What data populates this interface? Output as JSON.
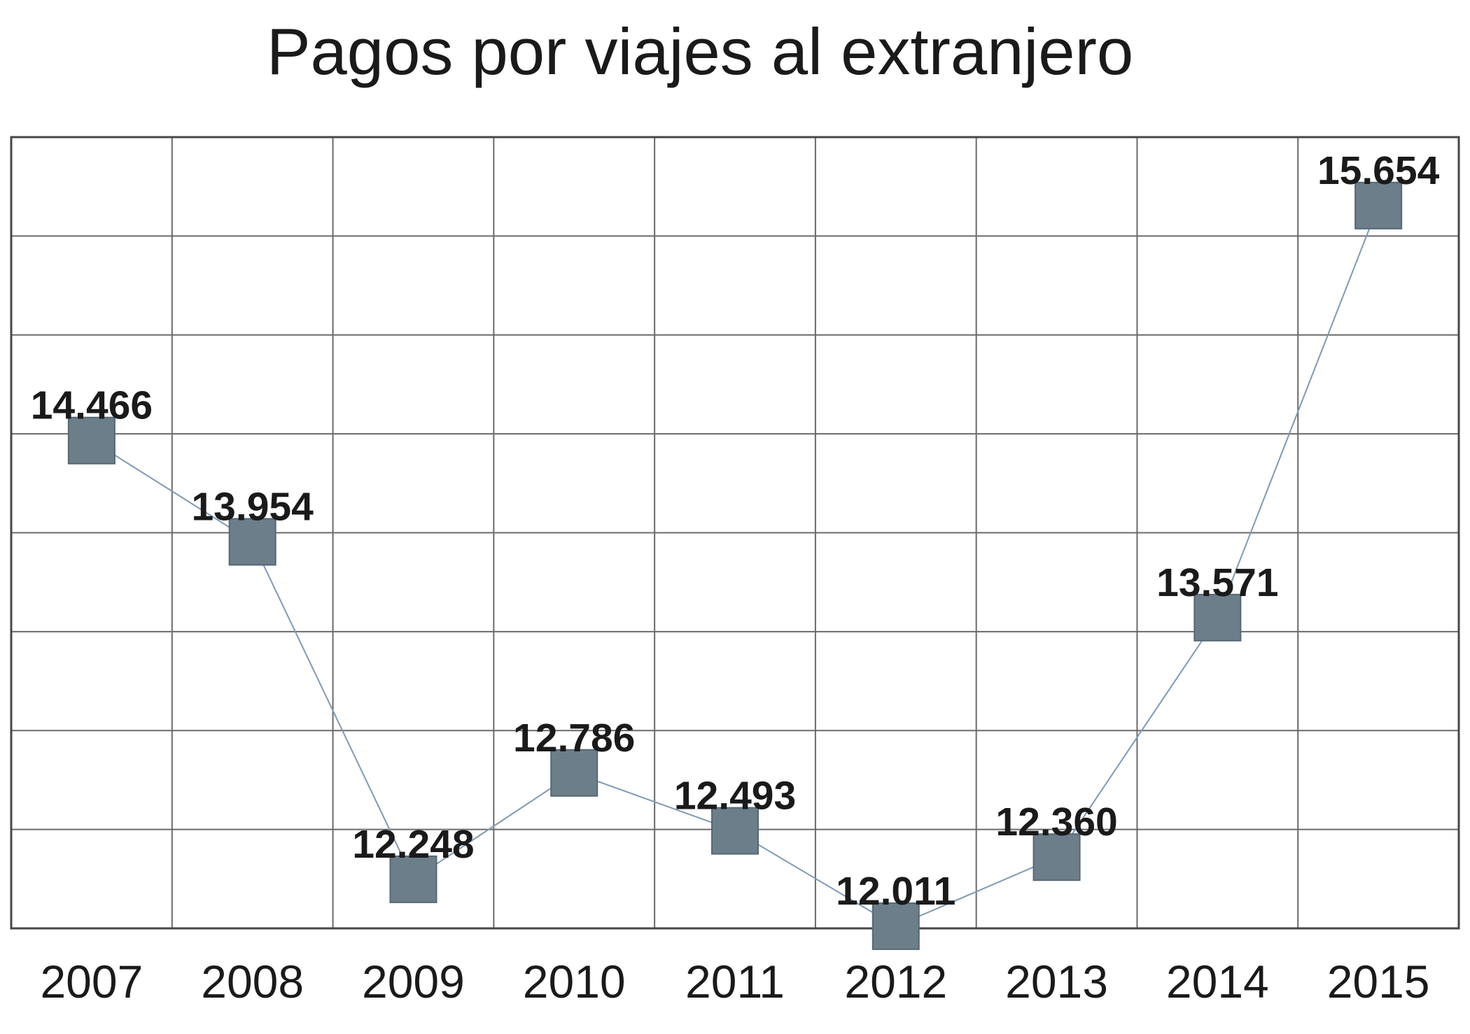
{
  "chart_data": {
    "type": "line",
    "title": "Pagos por viajes al extranjero",
    "categories": [
      "2007",
      "2008",
      "2009",
      "2010",
      "2011",
      "2012",
      "2013",
      "2014",
      "2015"
    ],
    "series": [
      {
        "name": "Pagos por viajes al extranjero",
        "values": [
          14.466,
          13.954,
          12.248,
          12.786,
          12.493,
          12.011,
          12.36,
          13.571,
          15.654
        ],
        "point_labels": [
          "14.466",
          "13.954",
          "12.248",
          "12.786",
          "12.493",
          "12.011",
          "12.360",
          "13.571",
          "15.654"
        ]
      }
    ],
    "xlabel": "",
    "ylabel": "",
    "ylim": [
      12,
      16
    ],
    "y_gridline_step": 0.5,
    "grid": true,
    "legend_position": "none",
    "marker_shape": "square",
    "colors": {
      "marker_fill": "#6b7e8a",
      "marker_border": "#566874",
      "line": "#7e9ab4",
      "grid": "#6a6a6a",
      "plot_border": "#474747",
      "text": "#1a1a1a"
    }
  }
}
